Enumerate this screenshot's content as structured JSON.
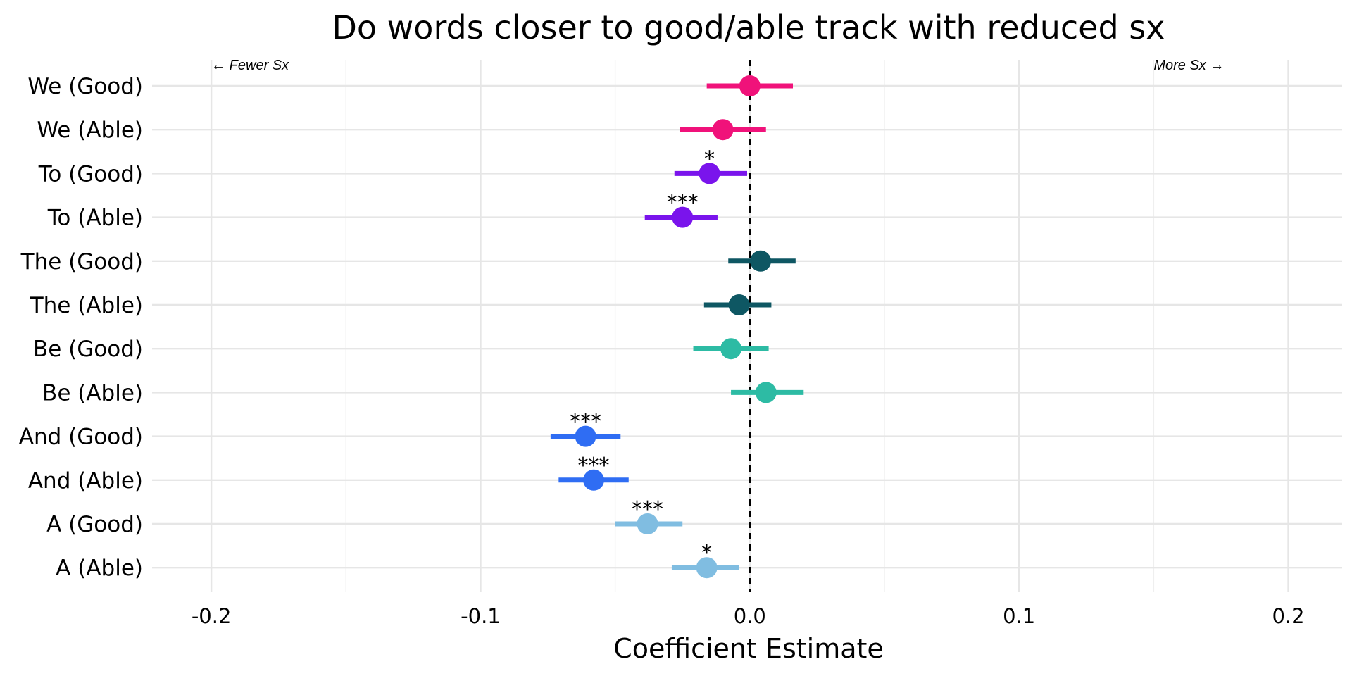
{
  "chart_data": {
    "type": "forest",
    "title": "Do words closer to good/able track with reduced sx",
    "xlabel": "Coefficient Estimate",
    "xlim": [
      -0.222,
      0.22
    ],
    "xticks": [
      -0.2,
      -0.1,
      0.0,
      0.1,
      0.2
    ],
    "xtick_labels": [
      "-0.2",
      "-0.1",
      "0.0",
      "0.1",
      "0.2"
    ],
    "reference_line": 0,
    "annotations": {
      "left": "← Fewer Sx",
      "right": "More Sx →"
    },
    "rows": [
      {
        "label": "We (Good)",
        "estimate": 0.0,
        "low": -0.016,
        "high": 0.016,
        "sig": "",
        "color": "#F0127A"
      },
      {
        "label": "We (Able)",
        "estimate": -0.01,
        "low": -0.026,
        "high": 0.006,
        "sig": "",
        "color": "#F0127A"
      },
      {
        "label": "To (Good)",
        "estimate": -0.015,
        "low": -0.028,
        "high": -0.001,
        "sig": "*",
        "color": "#7A14EC"
      },
      {
        "label": "To (Able)",
        "estimate": -0.025,
        "low": -0.039,
        "high": -0.012,
        "sig": "***",
        "color": "#7A14EC"
      },
      {
        "label": "The (Good)",
        "estimate": 0.004,
        "low": -0.008,
        "high": 0.017,
        "sig": "",
        "color": "#0E5763"
      },
      {
        "label": "The (Able)",
        "estimate": -0.004,
        "low": -0.017,
        "high": 0.008,
        "sig": "",
        "color": "#0E5763"
      },
      {
        "label": "Be (Good)",
        "estimate": -0.007,
        "low": -0.021,
        "high": 0.007,
        "sig": "",
        "color": "#2DBBA4"
      },
      {
        "label": "Be (Able)",
        "estimate": 0.006,
        "low": -0.007,
        "high": 0.02,
        "sig": "",
        "color": "#2DBBA4"
      },
      {
        "label": "And (Good)",
        "estimate": -0.061,
        "low": -0.074,
        "high": -0.048,
        "sig": "***",
        "color": "#2F6DF3"
      },
      {
        "label": "And (Able)",
        "estimate": -0.058,
        "low": -0.071,
        "high": -0.045,
        "sig": "***",
        "color": "#2F6DF3"
      },
      {
        "label": "A (Good)",
        "estimate": -0.038,
        "low": -0.05,
        "high": -0.025,
        "sig": "***",
        "color": "#80BDE1"
      },
      {
        "label": "A (Able)",
        "estimate": -0.016,
        "low": -0.029,
        "high": -0.004,
        "sig": "*",
        "color": "#80BDE1"
      }
    ]
  }
}
